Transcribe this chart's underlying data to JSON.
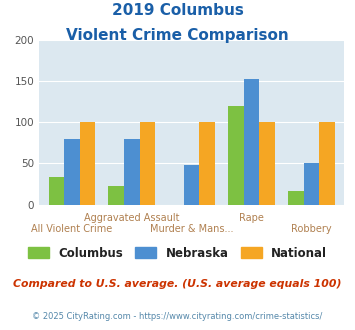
{
  "title_line1": "2019 Columbus",
  "title_line2": "Violent Crime Comparison",
  "categories": [
    "All Violent Crime",
    "Aggravated Assault",
    "Murder & Mans...",
    "Rape",
    "Robbery"
  ],
  "columbus_values": [
    33,
    22,
    0,
    120,
    17
  ],
  "nebraska_values": [
    80,
    79,
    48,
    152,
    50
  ],
  "national_values": [
    100,
    100,
    100,
    100,
    100
  ],
  "columbus_color": "#7dc142",
  "nebraska_color": "#4d8fd1",
  "national_color": "#f5a623",
  "bg_color": "#dce8f0",
  "title_color": "#1a5fa8",
  "ylim": [
    0,
    200
  ],
  "yticks": [
    0,
    50,
    100,
    150,
    200
  ],
  "legend_labels": [
    "Columbus",
    "Nebraska",
    "National"
  ],
  "footer_text": "Compared to U.S. average. (U.S. average equals 100)",
  "credit_text": "© 2025 CityRating.com - https://www.cityrating.com/crime-statistics/",
  "top_labels": [
    "",
    "Aggravated Assault",
    "",
    "Rape",
    ""
  ],
  "bottom_labels": [
    "All Violent Crime",
    "",
    "Murder & Mans...",
    "",
    "Robbery"
  ],
  "label_color": "#b08050",
  "footer_color": "#cc3300",
  "credit_color": "#5588aa"
}
